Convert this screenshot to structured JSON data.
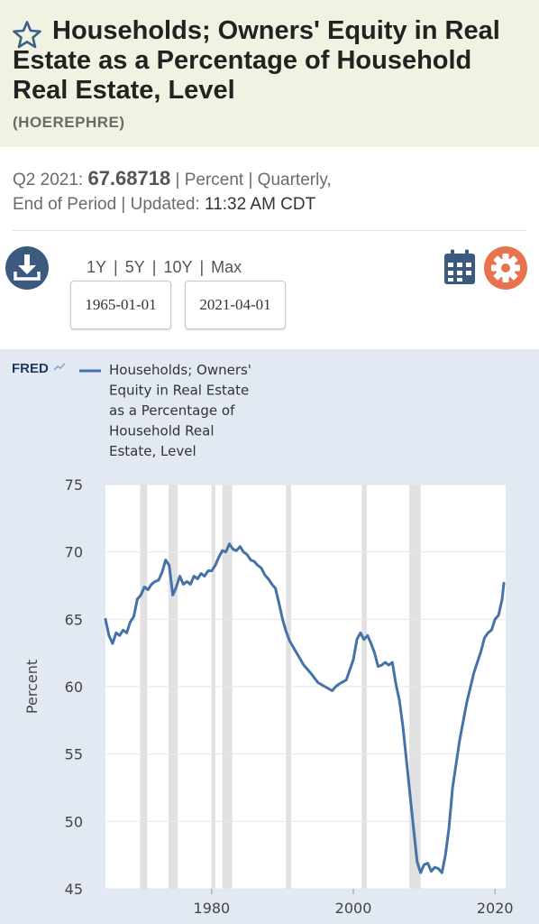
{
  "header": {
    "title": "Households; Owners' Equity in Real Estate as a Percentage of Household Real Estate, Level",
    "series_id": "(HOEREPHRE)"
  },
  "meta": {
    "period": "Q2 2021:",
    "value": "67.68718",
    "line1_rest": "| Percent | Quarterly,",
    "line2_prefix": "End of Period | Updated:",
    "updated": "11:32 AM CDT"
  },
  "controls": {
    "ranges": [
      "1Y",
      "5Y",
      "10Y",
      "Max"
    ],
    "start_date": "1965-01-01",
    "end_date": "2021-04-01"
  },
  "icons": {
    "favorite": "star-icon",
    "download": "download-icon",
    "calendar": "calendar-icon",
    "settings": "gear-icon"
  },
  "colors": {
    "series_line": "#4572a7",
    "download_button": "#3c5a80",
    "settings_button": "#e9734f",
    "graph_background": "#e2e9f2",
    "recession_band": "#e1e1e1"
  },
  "chart_data": {
    "type": "line",
    "logo": "FRED",
    "legend": "Households; Owners' Equity in Real Estate as a Percentage of Household Real Estate, Level",
    "legend_lines": [
      "Households; Owners'",
      "Equity in Real Estate",
      "as a Percentage of",
      "Household Real",
      "Estate, Level"
    ],
    "legend_position": "top-left",
    "ylabel": "Percent",
    "xlabel": "",
    "xlim": [
      1965,
      2021.5
    ],
    "ylim": [
      45,
      75
    ],
    "y_ticks": [
      "45",
      "50",
      "55",
      "60",
      "65",
      "70",
      "75"
    ],
    "x_ticks": [
      "1980",
      "2000",
      "2020"
    ],
    "grid": "horizontal",
    "recessions": [
      [
        1969.9,
        1970.9
      ],
      [
        1973.9,
        1975.2
      ],
      [
        1980.0,
        1980.5
      ],
      [
        1981.5,
        1982.9
      ],
      [
        1990.5,
        1991.2
      ],
      [
        2001.2,
        2001.9
      ],
      [
        2007.9,
        2009.5
      ]
    ],
    "series": [
      {
        "name": "Households; Owners' Equity in Real Estate as a Percentage of Household Real Estate, Level",
        "x": [
          1965.0,
          1965.5,
          1966.0,
          1966.5,
          1967.0,
          1967.5,
          1968.0,
          1968.5,
          1969.0,
          1969.5,
          1970.0,
          1970.5,
          1971.0,
          1971.5,
          1972.0,
          1972.5,
          1973.0,
          1973.5,
          1974.0,
          1974.5,
          1975.0,
          1975.5,
          1976.0,
          1976.5,
          1977.0,
          1977.5,
          1978.0,
          1978.5,
          1979.0,
          1979.5,
          1980.0,
          1980.5,
          1981.0,
          1981.5,
          1982.0,
          1982.5,
          1983.0,
          1983.5,
          1984.0,
          1984.5,
          1985.0,
          1985.5,
          1986.0,
          1986.5,
          1987.0,
          1987.5,
          1988.0,
          1988.5,
          1989.0,
          1989.5,
          1990.0,
          1990.5,
          1991.0,
          1992.0,
          1993.0,
          1994.0,
          1995.0,
          1996.0,
          1997.0,
          1997.5,
          1998.0,
          1999.0,
          2000.0,
          2000.5,
          2001.0,
          2001.5,
          2002.0,
          2002.5,
          2003.0,
          2003.5,
          2004.0,
          2004.5,
          2005.0,
          2005.5,
          2006.0,
          2006.5,
          2007.0,
          2007.5,
          2008.0,
          2008.5,
          2009.0,
          2009.5,
          2010.0,
          2010.5,
          2011.0,
          2011.5,
          2012.0,
          2012.5,
          2013.0,
          2013.5,
          2014.0,
          2015.0,
          2016.0,
          2017.0,
          2018.0,
          2018.5,
          2019.0,
          2019.5,
          2020.0,
          2020.5,
          2021.0,
          2021.25
        ],
        "y": [
          65.0,
          63.8,
          63.2,
          64.0,
          63.8,
          64.2,
          64.0,
          64.8,
          65.2,
          66.5,
          66.8,
          67.4,
          67.2,
          67.6,
          67.8,
          67.9,
          68.5,
          69.4,
          69.0,
          66.8,
          67.4,
          68.2,
          67.6,
          67.8,
          67.6,
          68.2,
          68.0,
          68.4,
          68.2,
          68.6,
          68.6,
          69.0,
          69.6,
          70.1,
          70.0,
          70.6,
          70.2,
          70.1,
          70.4,
          70.0,
          69.8,
          69.4,
          69.3,
          69.0,
          68.8,
          68.3,
          68.0,
          67.6,
          67.3,
          66.2,
          65.0,
          64.1,
          63.4,
          62.5,
          61.6,
          61.0,
          60.3,
          60.0,
          59.7,
          60.0,
          60.2,
          60.5,
          62.0,
          63.5,
          64.0,
          63.5,
          63.8,
          63.2,
          62.5,
          61.5,
          61.6,
          61.8,
          61.6,
          61.8,
          60.2,
          59.0,
          57.0,
          54.5,
          52.0,
          49.5,
          47.0,
          46.2,
          46.8,
          46.9,
          46.3,
          46.6,
          46.5,
          46.2,
          47.5,
          49.5,
          52.5,
          56.0,
          58.8,
          61.0,
          62.6,
          63.6,
          64.0,
          64.2,
          65.0,
          65.3,
          66.5,
          67.69
        ]
      }
    ]
  }
}
